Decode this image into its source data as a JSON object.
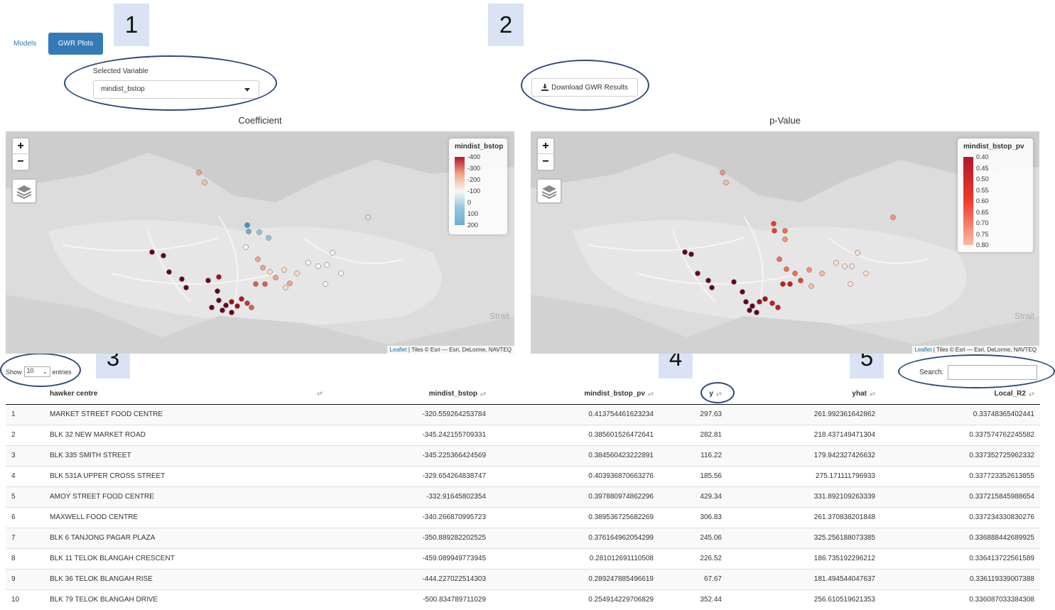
{
  "tabs": [
    {
      "label": "Models",
      "active": false
    },
    {
      "label": "GWR Plots",
      "active": true
    }
  ],
  "callouts": [
    "1",
    "2",
    "3",
    "4",
    "5"
  ],
  "selector": {
    "label": "Selected Variable",
    "value": "mindist_bstop"
  },
  "download": {
    "label": "Download GWR Results",
    "icon": "download-icon"
  },
  "maps": {
    "coefficient": {
      "title": "Coefficient",
      "legend_title": "mindist_bstop",
      "legend_ticks": [
        "-400",
        "-300",
        "-200",
        "-100",
        "0",
        "100",
        "200"
      ],
      "legend_colors": [
        "#b2182b",
        "#f4a582",
        "#f7f7f7",
        "#92c5de",
        "#6baed6"
      ],
      "attribution_link": "Leaflet",
      "attribution_text": " | Tiles © Esri — Esri, DeLorme, NAVTEQ",
      "label": "Strait"
    },
    "pvalue": {
      "title": "p-Value",
      "legend_title": "mindist_bstop_pv",
      "legend_ticks": [
        "0.40",
        "0.45",
        "0.50",
        "0.55",
        "0.60",
        "0.65",
        "0.70",
        "0.75",
        "0.80"
      ],
      "legend_colors": [
        "#b2182b",
        "#ef3b2c",
        "#fcbba1"
      ],
      "attribution_link": "Leaflet",
      "attribution_text": " | Tiles © Esri — Esri, DeLorme, NAVTEQ",
      "label": "Strait"
    }
  },
  "table": {
    "show_prefix": "Show",
    "show_value": "10",
    "show_suffix": "entries",
    "search_label": "Search:",
    "columns": [
      "",
      "hawker centre",
      "mindist_bstop",
      "mindist_bstop_pv",
      "y",
      "yhat",
      "Local_R2"
    ],
    "rows": [
      [
        "1",
        "MARKET STREET FOOD CENTRE",
        "-320.559264253784",
        "0.413754461623234",
        "297.63",
        "261.992361642862",
        "0.33748365402441"
      ],
      [
        "2",
        "BLK 32 NEW MARKET ROAD",
        "-345.242155709331",
        "0.385601526472641",
        "282.81",
        "218.437149471304",
        "0.337574762245582"
      ],
      [
        "3",
        "BLK 335 SMITH STREET",
        "-345.225366424569",
        "0.384560423222891",
        "116.22",
        "179.942327426632",
        "0.337352725962332"
      ],
      [
        "4",
        "BLK 531A UPPER CROSS STREET",
        "-329.654264838747",
        "0.403936870663276",
        "185.56",
        "275.171111796933",
        "0.337723352613855"
      ],
      [
        "5",
        "AMOY STREET FOOD CENTRE",
        "-332.91645802354",
        "0.397880974862296",
        "429.34",
        "331.892109263339",
        "0.337215845988654"
      ],
      [
        "6",
        "MAXWELL FOOD CENTRE",
        "-340.266870995723",
        "0.389536725682269",
        "306.83",
        "261.370838201848",
        "0.337234330830276"
      ],
      [
        "7",
        "BLK 6 TANJONG PAGAR PLAZA",
        "-350.889282202525",
        "0.376164962054299",
        "245.06",
        "325.256188073385",
        "0.336888442689925"
      ],
      [
        "8",
        "BLK 11 TELOK BLANGAH CRESCENT",
        "-459.089949773945",
        "0.281012691110508",
        "226.52",
        "186.735192296212",
        "0.336413722561589"
      ],
      [
        "9",
        "BLK 36 TELOK BLANGAH RISE",
        "-444.227022514303",
        "0.289247885496619",
        "67.67",
        "181.494544047637",
        "0.336119339007388"
      ],
      [
        "10",
        "BLK 79 TELOK BLANGAH DRIVE",
        "-500.834789711029",
        "0.254914229706829",
        "352.44",
        "256.610519621353",
        "0.336087033384308"
      ]
    ]
  }
}
